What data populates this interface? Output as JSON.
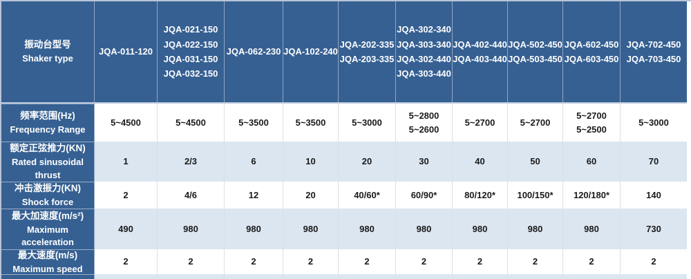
{
  "colors": {
    "header_blue": "#366092",
    "band_blue": "#dce6f1",
    "text_dark": "#1a1a1a",
    "outer_border": "#b9c5d8"
  },
  "table": {
    "header": {
      "label_zh": "振动台型号",
      "label_en": "Shaker type",
      "columns": [
        "JQA-011-120",
        "JQA-021-150\nJQA-022-150\nJQA-031-150\nJQA-032-150",
        "JQA-062-230",
        "JQA-102-240",
        "JQA-202-335\nJQA-203-335",
        "JQA-302-340\nJQA-303-340\nJQA-302-440\nJQA-303-440",
        "JQA-402-440\nJQA-403-440",
        "JQA-502-450\nJQA-503-450",
        "JQA-602-450\nJQA-603-450",
        "JQA-702-450\nJQA-703-450"
      ]
    },
    "rows": [
      {
        "label_zh": "频率范围(Hz)",
        "label_en": "Frequency Range",
        "values": [
          "5~4500",
          "5~4500",
          "5~3500",
          "5~3500",
          "5~3000",
          "5~2800\n5~2600",
          "5~2700",
          "5~2700",
          "5~2700\n5~2500",
          "5~3000"
        ]
      },
      {
        "label_zh": "额定正弦推力(KN)",
        "label_en": "Rated sinusoidal thrust",
        "values": [
          "1",
          "2/3",
          "6",
          "10",
          "20",
          "30",
          "40",
          "50",
          "60",
          "70"
        ]
      },
      {
        "label_zh": "冲击激振力(KN)",
        "label_en": "Shock force",
        "values": [
          "2",
          "4/6",
          "12",
          "20",
          "40/60*",
          "60/90*",
          "80/120*",
          "100/150*",
          "120/180*",
          "140"
        ]
      },
      {
        "label_zh": "最大加速度(m/s²)",
        "label_en": "Maximum acceleration",
        "values": [
          "490",
          "980",
          "980",
          "980",
          "980",
          "980",
          "980",
          "980",
          "980",
          "730"
        ]
      },
      {
        "label_zh": "最大速度(m/s)",
        "label_en": "Maximum speed",
        "values": [
          "2",
          "2",
          "2",
          "2",
          "2",
          "2",
          "2",
          "2",
          "2",
          "2"
        ]
      }
    ]
  }
}
